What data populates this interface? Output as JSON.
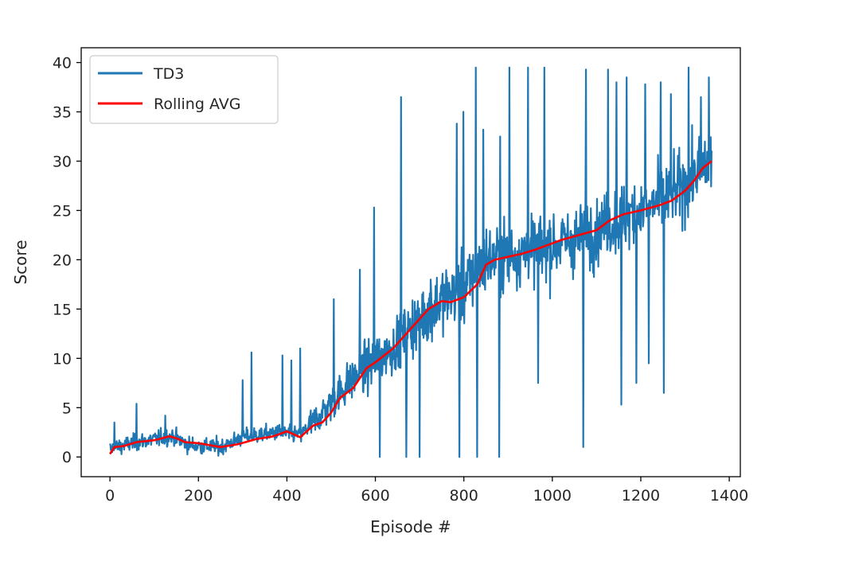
{
  "chart_data": {
    "type": "line",
    "xlabel": "Episode #",
    "ylabel": "Score",
    "xlim": [
      -65,
      1425
    ],
    "ylim": [
      -2,
      41.5
    ],
    "x_ticks": [
      0,
      200,
      400,
      600,
      800,
      1000,
      1200,
      1400
    ],
    "y_ticks": [
      0,
      5,
      10,
      15,
      20,
      25,
      30,
      35,
      40
    ],
    "grid": false,
    "legend_position": "top-left",
    "n_episodes": 1360,
    "series": [
      {
        "name": "TD3",
        "color": "#1f77b4",
        "style": "noisy per-episode score",
        "trend": [
          [
            0,
            0.8
          ],
          [
            50,
            1.4
          ],
          [
            100,
            1.8
          ],
          [
            140,
            2.1
          ],
          [
            180,
            1.2
          ],
          [
            250,
            1.0
          ],
          [
            300,
            2.0
          ],
          [
            380,
            2.5
          ],
          [
            430,
            2.2
          ],
          [
            470,
            4.0
          ],
          [
            500,
            5.5
          ],
          [
            550,
            8.0
          ],
          [
            600,
            9.8
          ],
          [
            650,
            11.5
          ],
          [
            700,
            14.0
          ],
          [
            750,
            16.0
          ],
          [
            800,
            17.0
          ],
          [
            850,
            20.0
          ],
          [
            900,
            20.5
          ],
          [
            950,
            21.0
          ],
          [
            1000,
            21.5
          ],
          [
            1050,
            22.0
          ],
          [
            1100,
            23.0
          ],
          [
            1150,
            24.0
          ],
          [
            1200,
            25.0
          ],
          [
            1250,
            26.0
          ],
          [
            1300,
            27.5
          ],
          [
            1330,
            29.0
          ],
          [
            1360,
            30.0
          ]
        ],
        "spikes": [
          [
            10,
            3.5
          ],
          [
            60,
            5.4
          ],
          [
            125,
            4.2
          ],
          [
            300,
            7.8
          ],
          [
            320,
            10.6
          ],
          [
            390,
            10.3
          ],
          [
            410,
            9.8
          ],
          [
            430,
            11.0
          ],
          [
            506,
            16.0
          ],
          [
            565,
            19.0
          ],
          [
            597,
            25.3
          ],
          [
            658,
            36.5
          ],
          [
            700,
            20.0
          ],
          [
            725,
            18.0
          ],
          [
            784,
            33.8
          ],
          [
            799,
            35.0
          ],
          [
            827,
            39.5
          ],
          [
            844,
            33.2
          ],
          [
            882,
            32.5
          ],
          [
            903,
            39.5
          ],
          [
            945,
            39.5
          ],
          [
            982,
            39.5
          ],
          [
            1076,
            39.3
          ],
          [
            1126,
            39.3
          ],
          [
            1145,
            38.0
          ],
          [
            1168,
            38.5
          ],
          [
            1210,
            37.8
          ],
          [
            1245,
            38.0
          ],
          [
            1268,
            36.8
          ],
          [
            1308,
            39.5
          ],
          [
            1336,
            36.5
          ],
          [
            1354,
            38.5
          ]
        ],
        "dips": [
          [
            610,
            0.0
          ],
          [
            670,
            0.0
          ],
          [
            700,
            0.0
          ],
          [
            790,
            0.0
          ],
          [
            830,
            0.0
          ],
          [
            880,
            0.0
          ],
          [
            968,
            7.5
          ],
          [
            1070,
            1.0
          ],
          [
            1156,
            5.3
          ],
          [
            1190,
            7.5
          ],
          [
            1218,
            9.5
          ],
          [
            1252,
            6.5
          ],
          [
            1300,
            23.0
          ]
        ]
      },
      {
        "name": "Rolling AVG",
        "color": "#ff0000",
        "points": [
          [
            0,
            0.3
          ],
          [
            10,
            1.0
          ],
          [
            30,
            1.1
          ],
          [
            60,
            1.5
          ],
          [
            100,
            1.7
          ],
          [
            135,
            2.1
          ],
          [
            150,
            1.9
          ],
          [
            170,
            1.5
          ],
          [
            200,
            1.4
          ],
          [
            250,
            1.0
          ],
          [
            290,
            1.3
          ],
          [
            330,
            1.8
          ],
          [
            370,
            2.1
          ],
          [
            400,
            2.6
          ],
          [
            430,
            2.0
          ],
          [
            460,
            3.2
          ],
          [
            480,
            3.5
          ],
          [
            500,
            4.5
          ],
          [
            520,
            6.0
          ],
          [
            550,
            7.0
          ],
          [
            580,
            9.0
          ],
          [
            600,
            9.6
          ],
          [
            640,
            11.0
          ],
          [
            680,
            13.0
          ],
          [
            720,
            15.0
          ],
          [
            750,
            15.8
          ],
          [
            770,
            15.7
          ],
          [
            800,
            16.2
          ],
          [
            830,
            17.5
          ],
          [
            850,
            19.5
          ],
          [
            870,
            20.0
          ],
          [
            900,
            20.3
          ],
          [
            930,
            20.6
          ],
          [
            960,
            21.0
          ],
          [
            990,
            21.5
          ],
          [
            1020,
            22.0
          ],
          [
            1060,
            22.5
          ],
          [
            1100,
            23.0
          ],
          [
            1130,
            24.0
          ],
          [
            1160,
            24.6
          ],
          [
            1200,
            25.0
          ],
          [
            1240,
            25.5
          ],
          [
            1270,
            26.0
          ],
          [
            1300,
            27.0
          ],
          [
            1320,
            28.0
          ],
          [
            1340,
            29.3
          ],
          [
            1360,
            30.0
          ]
        ]
      }
    ]
  }
}
